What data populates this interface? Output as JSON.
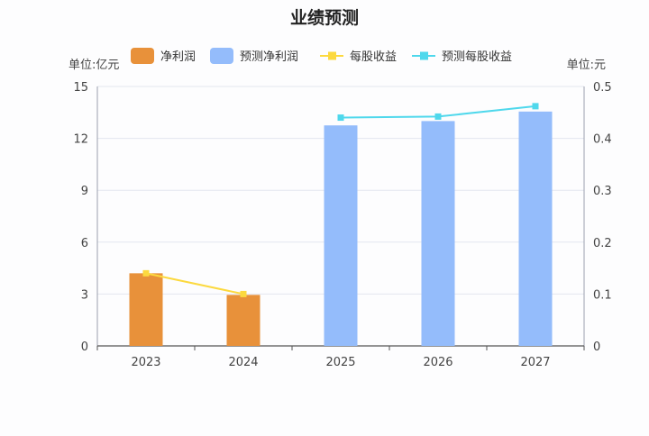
{
  "chart_data": {
    "type": "bar",
    "title": "业绩预测",
    "categories": [
      "2023",
      "2024",
      "2025",
      "2026",
      "2027"
    ],
    "y_left": {
      "unit_label": "单位:亿元",
      "range": [
        0,
        15
      ],
      "ticks": [
        "0",
        "3",
        "6",
        "9",
        "12",
        "15"
      ]
    },
    "y_right": {
      "unit_label": "单位:元",
      "range": [
        0,
        0.5
      ],
      "ticks": [
        "0",
        "0.1",
        "0.2",
        "0.3",
        "0.4",
        "0.5"
      ]
    },
    "grid": true,
    "legend_position": "top",
    "series": [
      {
        "name": "净利润",
        "kind": "bar",
        "axis": "left",
        "color": "#e8913a",
        "values": [
          4.2,
          2.95,
          null,
          null,
          null
        ]
      },
      {
        "name": "预测净利润",
        "kind": "bar",
        "axis": "left",
        "color": "#94bcfb",
        "values": [
          null,
          null,
          12.75,
          13.0,
          13.55
        ]
      },
      {
        "name": "每股收益",
        "kind": "line",
        "axis": "right",
        "color": "#fcd93f",
        "values": [
          0.14,
          0.1,
          null,
          null,
          null
        ]
      },
      {
        "name": "预测每股收益",
        "kind": "line",
        "axis": "right",
        "color": "#4fd8ec",
        "values": [
          null,
          null,
          0.44,
          0.442,
          0.462
        ]
      }
    ]
  }
}
